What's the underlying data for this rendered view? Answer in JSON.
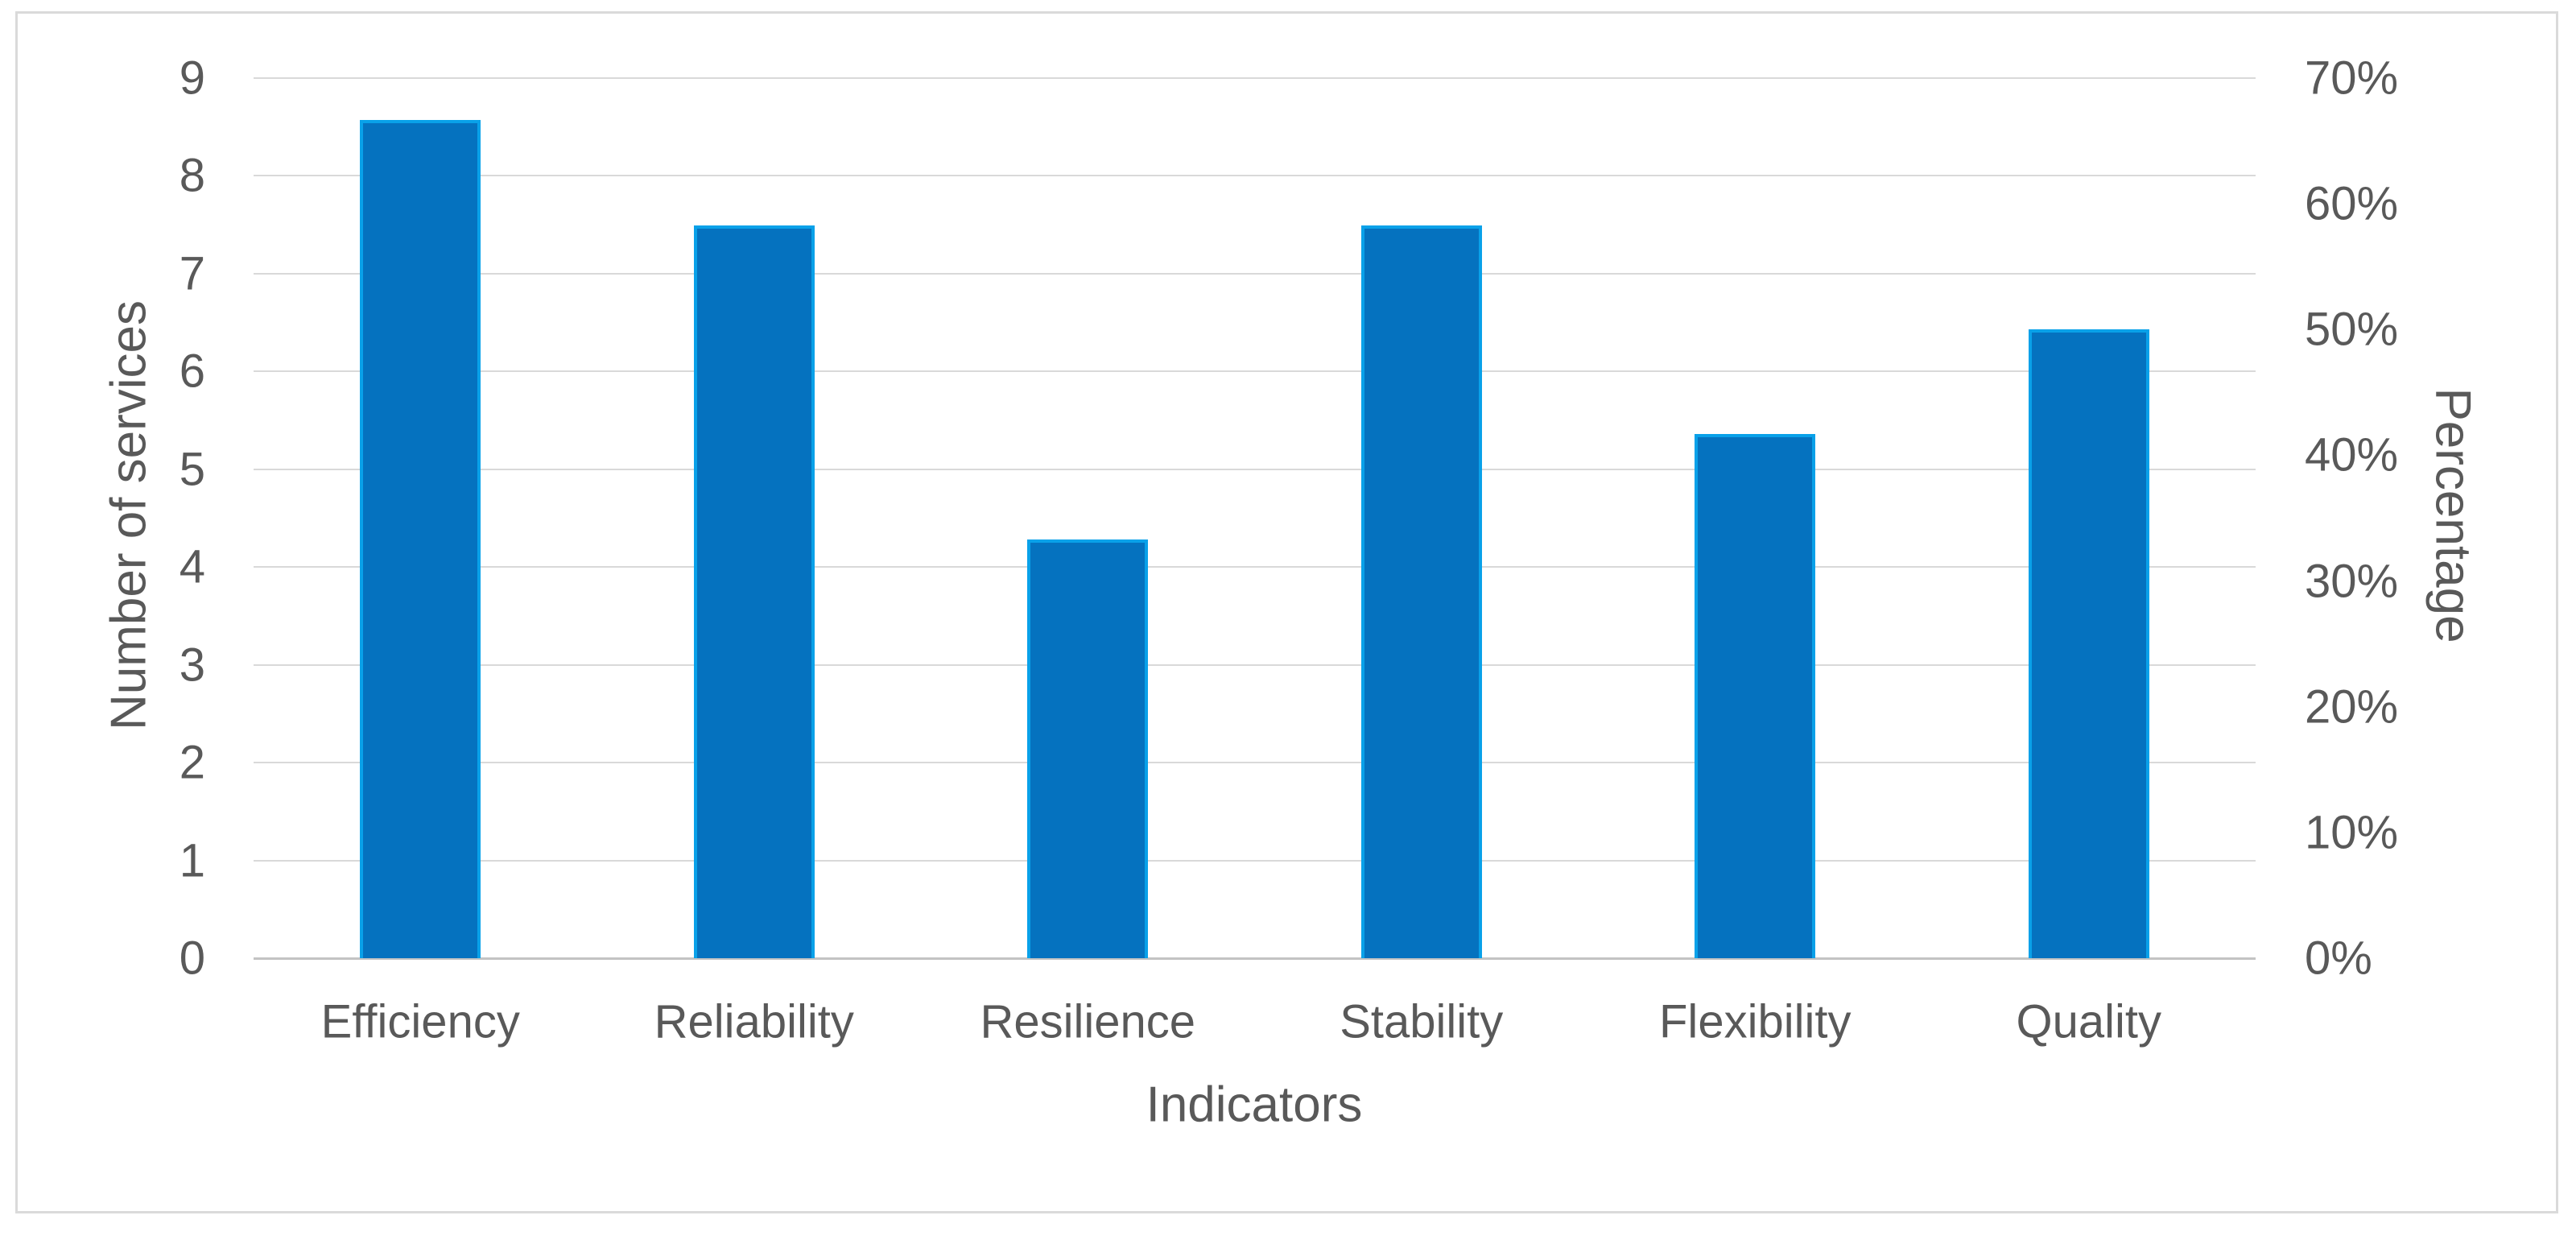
{
  "figure": {
    "x_axis_title": "Indicators",
    "left_axis_title": "Number of services",
    "right_axis_title": "Percentage"
  },
  "chart_data": {
    "type": "bar",
    "title": "",
    "categories": [
      "Efficiency",
      "Reliability",
      "Resilience",
      "Stability",
      "Flexibility",
      "Quality"
    ],
    "series": [
      {
        "name": "Indicators",
        "plotted_on_axis": "right",
        "values_percent": [
          66.7,
          58.3,
          33.3,
          58.3,
          41.7,
          50.0
        ],
        "values_on_left_axis_scale": [
          8.6,
          7.5,
          4.3,
          7.5,
          5.4,
          6.4
        ]
      }
    ],
    "xlabel": "Indicators",
    "ylabel_left": "Number of services",
    "ylabel_right": "Percentage",
    "left_axis": {
      "min": 0,
      "max": 9,
      "tick_step": 1,
      "tick_labels": [
        "0",
        "1",
        "2",
        "3",
        "4",
        "5",
        "6",
        "7",
        "8",
        "9"
      ]
    },
    "right_axis": {
      "min": 0,
      "max": 70,
      "tick_step": 10,
      "tick_labels": [
        "0%",
        "10%",
        "20%",
        "30%",
        "40%",
        "50%",
        "60%",
        "70%"
      ]
    },
    "grid": true,
    "legend": false,
    "colors": {
      "bar_fill": "#0572bf",
      "bar_border": "#09a1e9",
      "gridline": "#d9d9d9",
      "axis_line": "#c3c3c3",
      "text": "#595959",
      "frame_border": "#dadada",
      "background": "#ffffff"
    }
  }
}
